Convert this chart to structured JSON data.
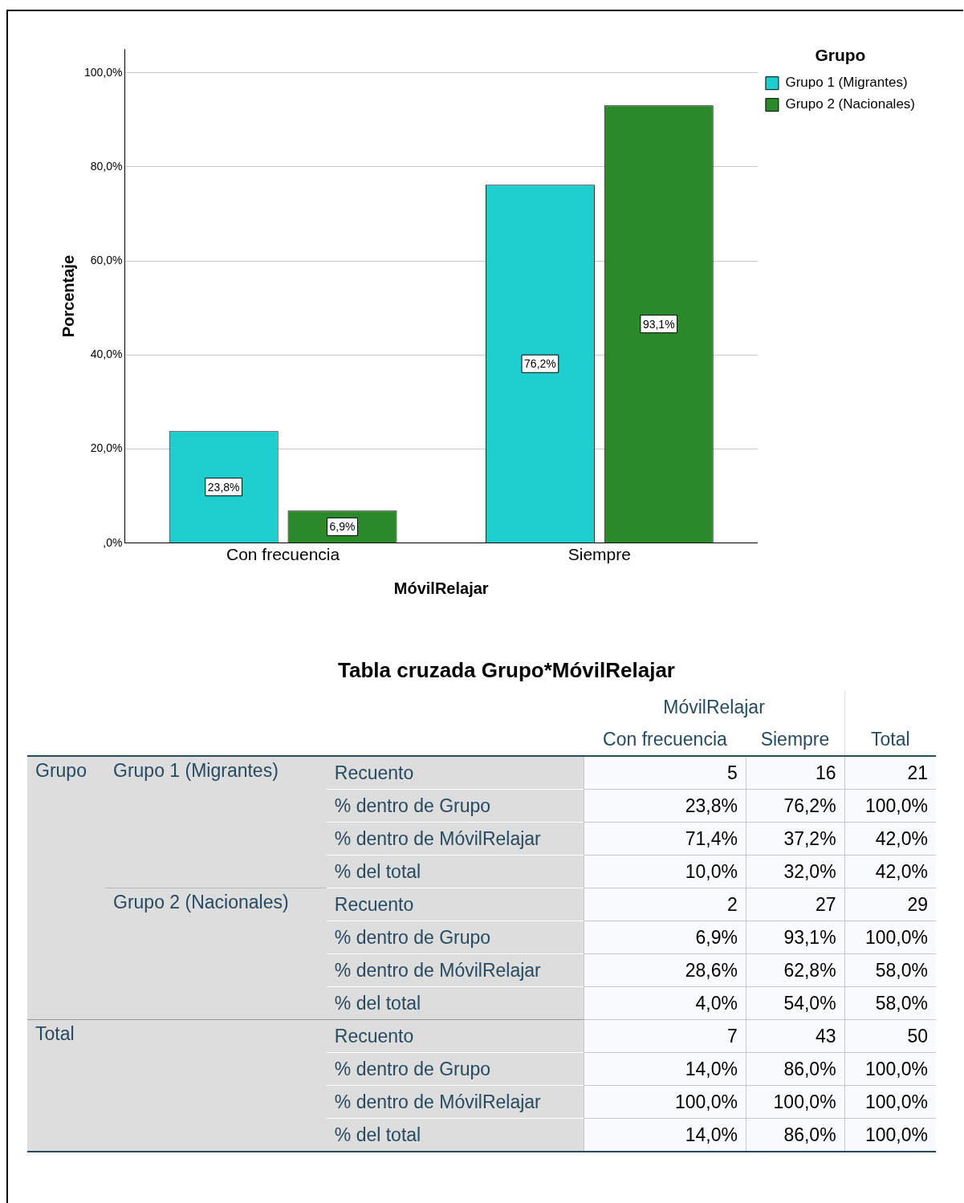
{
  "chart_data": [
    {
      "type": "bar",
      "xlabel": "MóvilRelajar",
      "ylabel": "Porcentaje",
      "legend_title": "Grupo",
      "legend": "top right",
      "grid": "y",
      "data_labels": true,
      "categories": [
        "Con frecuencia",
        "Siempre"
      ],
      "series": [
        {
          "name": "Grupo 1 (Migrantes)",
          "color": "#1ecdcd",
          "values": [
            23.8,
            76.2
          ],
          "value_labels": [
            "23,8%",
            "76,2%"
          ]
        },
        {
          "name": "Grupo 2 (Nacionales)",
          "color": "#2a8a2a",
          "values": [
            6.9,
            93.1
          ],
          "value_labels": [
            "6,9%",
            "93,1%"
          ]
        }
      ],
      "ylim": [
        0,
        105
      ],
      "yticks": [
        {
          "value": 0,
          "label": ",0%"
        },
        {
          "value": 20,
          "label": "20,0%"
        },
        {
          "value": 40,
          "label": "40,0%"
        },
        {
          "value": 60,
          "label": "60,0%"
        },
        {
          "value": 80,
          "label": "80,0%"
        },
        {
          "value": 100,
          "label": "100,0%"
        }
      ]
    },
    {
      "type": "other",
      "title": "Tabla cruzada Grupo*MóvilRelajar",
      "annotations": [
        "MóvilRelajar",
        "Grupo",
        "Grupo 1 (Migrantes)",
        "Grupo 2 (Nacionales)",
        "Total"
      ],
      "categories": [
        "Con frecuencia",
        "Siempre",
        "Total"
      ],
      "y_categories": [
        "Recuento",
        "% dentro de Grupo",
        "% dentro de MóvilRelajar",
        "% del total",
        "Recuento",
        "% dentro de Grupo",
        "% dentro de MóvilRelajar",
        "% del total",
        "Recuento",
        "% dentro de Grupo",
        "% dentro de MóvilRelajar",
        "% del total"
      ],
      "cell_labels": [
        [
          "5",
          "16",
          "21"
        ],
        [
          "23,8%",
          "76,2%",
          "100,0%"
        ],
        [
          "71,4%",
          "37,2%",
          "42,0%"
        ],
        [
          "10,0%",
          "32,0%",
          "42,0%"
        ],
        [
          "2",
          "27",
          "29"
        ],
        [
          "6,9%",
          "93,1%",
          "100,0%"
        ],
        [
          "28,6%",
          "62,8%",
          "58,0%"
        ],
        [
          "4,0%",
          "54,0%",
          "58,0%"
        ],
        [
          "7",
          "43",
          "50"
        ],
        [
          "14,0%",
          "86,0%",
          "100,0%"
        ],
        [
          "100,0%",
          "100,0%",
          "100,0%"
        ],
        [
          "14,0%",
          "86,0%",
          "100,0%"
        ]
      ]
    }
  ]
}
